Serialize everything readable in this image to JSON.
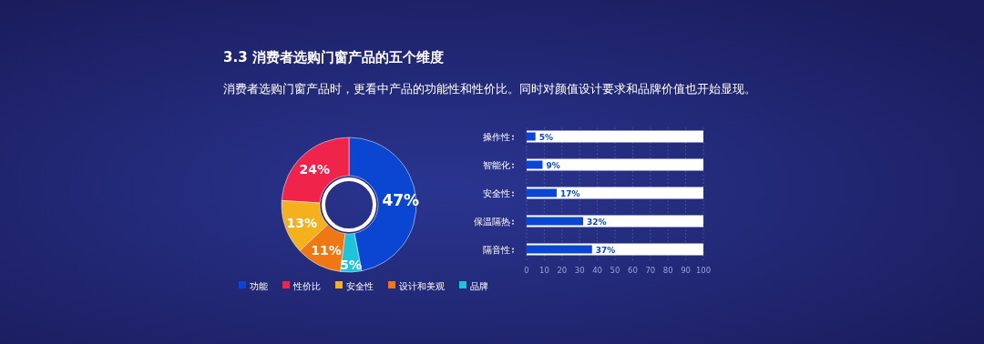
{
  "chart_data": [
    {
      "type": "donut",
      "title": "3.3 消费者选购门窗产品的五个维度",
      "subtitle": "消费者选购门窗产品时，更看中产品的功能性和性价比。同时对颜值设计要求和品牌价值也开始显现。",
      "categories": [
        "功能",
        "性价比",
        "安全性",
        "设计和美观",
        "品牌"
      ],
      "values": [
        47,
        24,
        13,
        11,
        5
      ],
      "colors": [
        "#0a46d2",
        "#f0234b",
        "#f5b01e",
        "#f07814",
        "#1ec3dc"
      ],
      "value_labels": [
        "47%",
        "24%",
        "13%",
        "11%",
        "5%"
      ],
      "legend": "bottom"
    },
    {
      "type": "bar",
      "orientation": "horizontal",
      "categories": [
        "操作性",
        "智能化",
        "安全性",
        "保温隔热",
        "隔音性"
      ],
      "values": [
        5,
        9,
        17,
        32,
        37
      ],
      "color": "#0a46d2",
      "value_labels": [
        "5%",
        "9%",
        "17%",
        "32%",
        "37%"
      ],
      "xlim": [
        0,
        100
      ],
      "xticks": [
        0,
        10,
        20,
        30,
        40,
        50,
        60,
        70,
        80,
        90,
        100
      ],
      "grid": "x"
    }
  ]
}
